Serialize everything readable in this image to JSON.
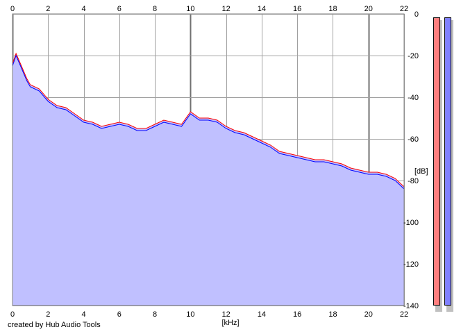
{
  "credit": "created by Hub Audio Tools",
  "chart_data": {
    "type": "line",
    "x_unit_label": "[kHz]",
    "y_unit_label": "[dB]",
    "xlim": [
      0,
      22
    ],
    "ylim": [
      -140,
      0
    ],
    "x_ticks": [
      "0",
      "2",
      "4",
      "6",
      "8",
      "10",
      "12",
      "14",
      "16",
      "18",
      "20",
      "22"
    ],
    "y_ticks": [
      "0",
      "-20",
      "-40",
      "-60",
      "-80",
      "-100",
      "-120",
      "-140"
    ],
    "grid": true,
    "fill_color": "#c0c0ff",
    "series": [
      {
        "color": "#ff0000",
        "x": [
          0,
          0.2,
          0.4,
          0.6,
          0.8,
          1,
          1.5,
          2,
          2.5,
          3,
          3.5,
          4,
          4.5,
          5,
          5.5,
          6,
          6.5,
          7,
          7.5,
          8,
          8.5,
          9,
          9.5,
          10,
          10.5,
          11,
          11.5,
          12,
          12.5,
          13,
          13.5,
          14,
          14.5,
          15,
          15.5,
          16,
          16.5,
          17,
          17.5,
          18,
          18.5,
          19,
          19.5,
          20,
          20.5,
          21,
          21.5,
          22
        ],
        "y": [
          -24,
          -19,
          -23,
          -27,
          -31,
          -34,
          -36,
          -41,
          -44,
          -45,
          -48,
          -51,
          -52,
          -54,
          -53,
          -52,
          -53,
          -55,
          -55,
          -53,
          -51,
          -52,
          -53,
          -47,
          -50,
          -50,
          -51,
          -54,
          -56,
          -57,
          -59,
          -61,
          -63,
          -66,
          -67,
          -68,
          -69,
          -70,
          -70,
          -71,
          -72,
          -74,
          -75,
          -76,
          -76,
          -77,
          -79,
          -83
        ]
      },
      {
        "color": "#0000ff",
        "x": [
          0,
          0.2,
          0.4,
          0.6,
          0.8,
          1,
          1.5,
          2,
          2.5,
          3,
          3.5,
          4,
          4.5,
          5,
          5.5,
          6,
          6.5,
          7,
          7.5,
          8,
          8.5,
          9,
          9.5,
          10,
          10.5,
          11,
          11.5,
          12,
          12.5,
          13,
          13.5,
          14,
          14.5,
          15,
          15.5,
          16,
          16.5,
          17,
          17.5,
          18,
          18.5,
          19,
          19.5,
          20,
          20.5,
          21,
          21.5,
          22
        ],
        "y": [
          -25,
          -20,
          -24,
          -28,
          -32,
          -35,
          -37,
          -42,
          -45,
          -46,
          -49,
          -52,
          -53,
          -55,
          -54,
          -53,
          -54,
          -56,
          -56,
          -54,
          -52,
          -53,
          -54,
          -48,
          -51,
          -51,
          -52,
          -55,
          -57,
          -58,
          -60,
          -62,
          -64,
          -67,
          -68,
          -69,
          -70,
          -71,
          -71,
          -72,
          -73,
          -75,
          -76,
          -77,
          -77,
          -78,
          -80,
          -84
        ]
      }
    ]
  },
  "meters": [
    {
      "color": "#ff8080"
    },
    {
      "color": "#8080ff"
    }
  ]
}
